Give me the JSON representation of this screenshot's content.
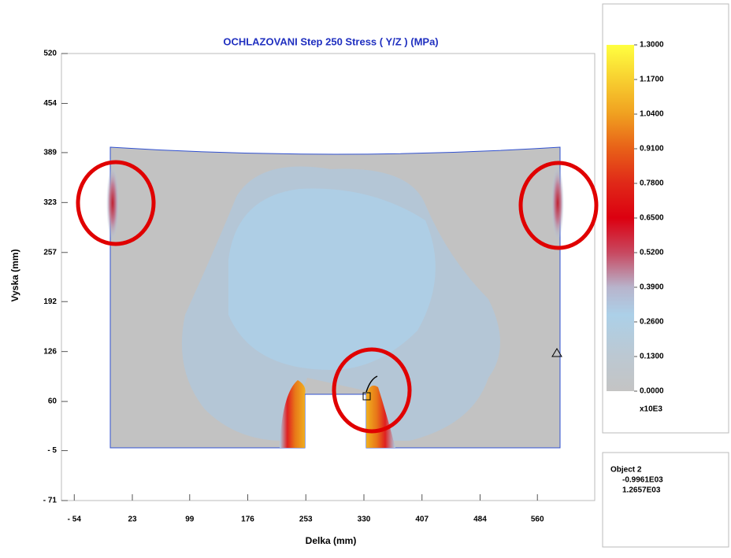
{
  "chart_data": {
    "type": "contour",
    "title": "OCHLAZOVANI Step 250  Stress ( Y/Z )  (MPa)",
    "x_label": "Delka (mm)",
    "y_label": "Vyska (mm)",
    "xlim": [
      -71,
      636
    ],
    "ylim": [
      -71,
      520
    ],
    "xticks": [
      {
        "value": -54,
        "label": "- 54"
      },
      23,
      99,
      176,
      253,
      330,
      407,
      484,
      560
    ],
    "yticks": [
      {
        "value": -71,
        "label": "- 71"
      },
      {
        "value": -5,
        "label": "- 5"
      },
      60,
      126,
      192,
      257,
      323,
      389,
      454,
      520
    ],
    "colorbar": {
      "lim": [
        0,
        1.3
      ],
      "unit_label": "x10E3",
      "ticks": [
        {
          "value": 0,
          "label": "0.0000"
        },
        {
          "value": 0.13,
          "label": "0.1300"
        },
        {
          "value": 0.26,
          "label": "0.2600"
        },
        {
          "value": 0.39,
          "label": "0.3900"
        },
        {
          "value": 0.52,
          "label": "0.5200"
        },
        {
          "value": 0.65,
          "label": "0.6500"
        },
        {
          "value": 0.78,
          "label": "0.7800"
        },
        {
          "value": 0.91,
          "label": "0.9100"
        },
        {
          "value": 1.04,
          "label": "1.0400"
        },
        {
          "value": 1.17,
          "label": "1.1700"
        },
        {
          "value": 1.3,
          "label": "1.3000"
        }
      ]
    },
    "info": {
      "object": "Object  2",
      "line1": "-0.9961E03",
      "line2": "1.2657E03"
    }
  }
}
